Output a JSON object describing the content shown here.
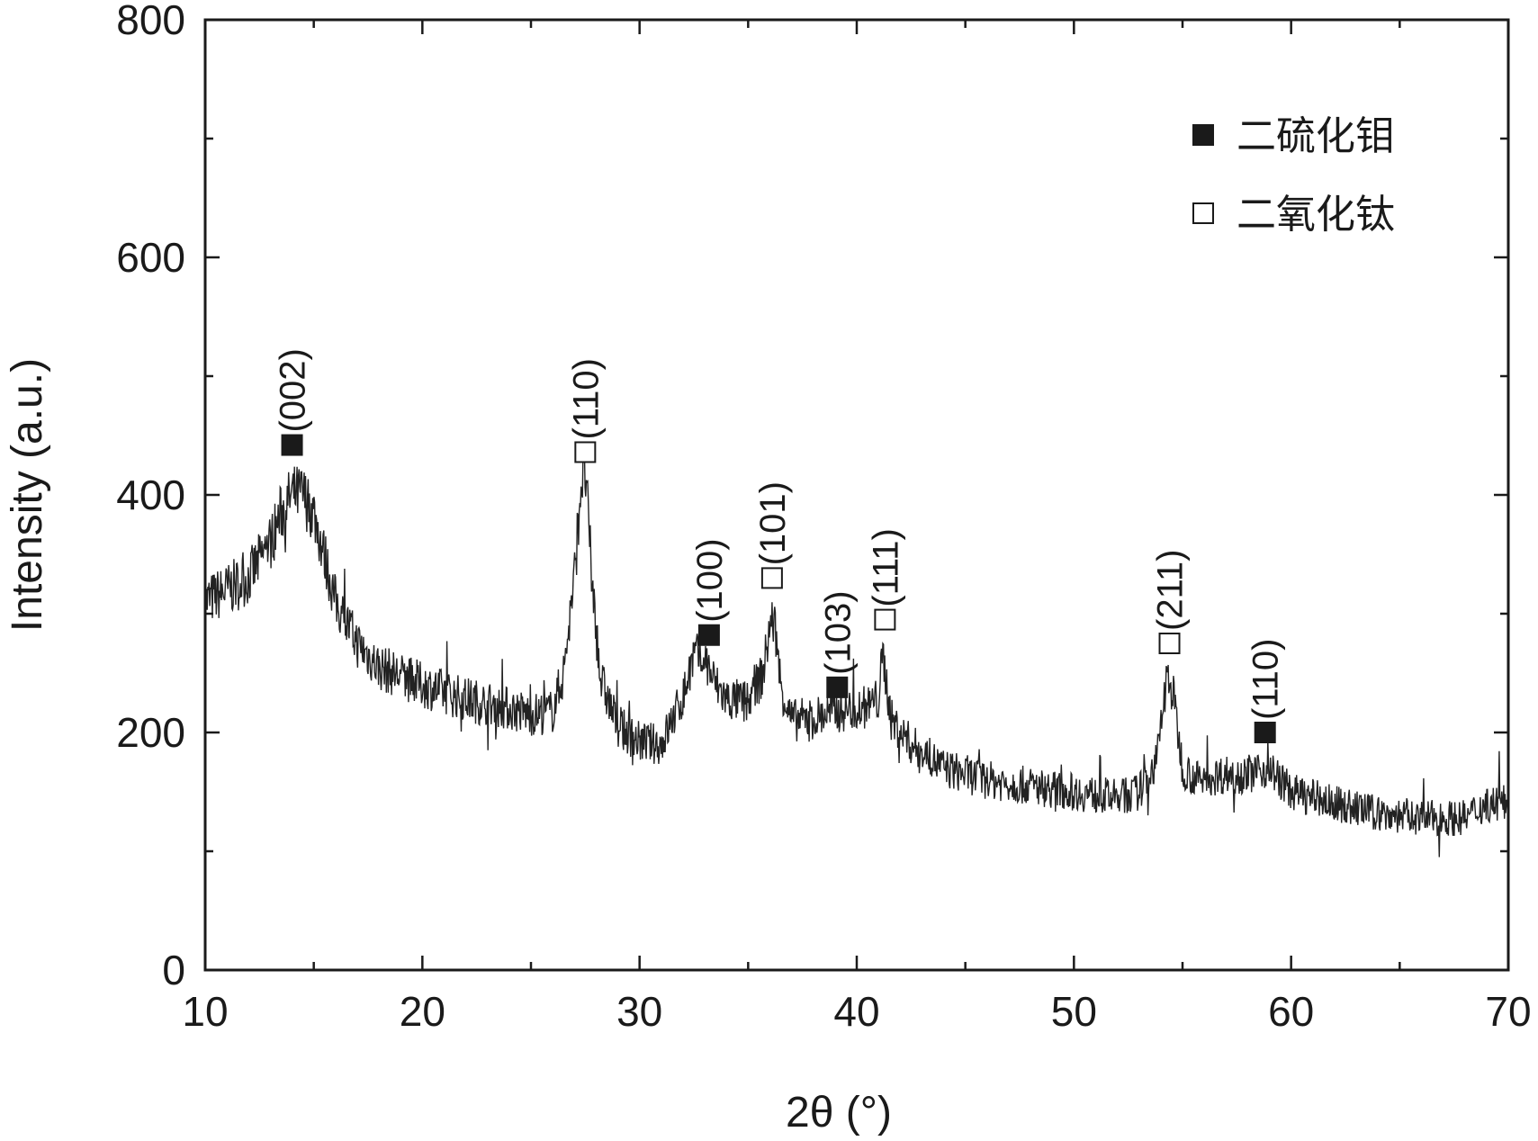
{
  "chart_data": {
    "type": "line",
    "xlabel": "2θ (°)",
    "ylabel": "Intensity (a.u.)",
    "xlim": [
      10,
      70
    ],
    "ylim": [
      0,
      800
    ],
    "x_ticks": [
      10,
      20,
      30,
      40,
      50,
      60,
      70
    ],
    "y_ticks": [
      0,
      200,
      400,
      600,
      800
    ],
    "grid": false,
    "legend_position": "top-right",
    "legend": [
      {
        "label": "二硫化钼",
        "marker": "filled-square"
      },
      {
        "label": "二氧化钛",
        "marker": "open-square"
      }
    ],
    "series": [
      {
        "color": "#222222",
        "x": [
          10,
          11,
          12,
          13,
          13.5,
          14,
          14.5,
          15,
          16,
          17,
          18,
          20,
          22,
          24,
          25,
          26,
          26.5,
          27,
          27.3,
          27.5,
          27.8,
          28.2,
          29,
          30,
          31,
          32,
          32.5,
          33,
          33.5,
          34,
          35,
          35.7,
          36,
          36.2,
          36.5,
          37,
          38,
          39,
          40,
          40.5,
          41,
          41.2,
          41.6,
          42.5,
          44,
          46,
          48,
          50,
          52,
          53,
          53.8,
          54.3,
          54.6,
          55,
          55.7,
          57,
          58,
          59,
          60,
          62,
          64,
          66,
          68,
          69,
          70
        ],
        "y": [
          310,
          320,
          330,
          360,
          385,
          400,
          400,
          385,
          310,
          275,
          255,
          240,
          228,
          220,
          215,
          218,
          250,
          330,
          410,
          420,
          330,
          245,
          205,
          192,
          190,
          230,
          265,
          262,
          240,
          228,
          225,
          250,
          290,
          295,
          240,
          210,
          212,
          218,
          220,
          222,
          228,
          265,
          210,
          190,
          170,
          160,
          155,
          150,
          145,
          150,
          175,
          250,
          228,
          170,
          160,
          165,
          165,
          170,
          150,
          140,
          132,
          128,
          128,
          140,
          140
        ]
      }
    ],
    "annotations": [
      {
        "label": "(002)",
        "x": 14,
        "marker": "filled-square",
        "y": 442
      },
      {
        "label": "(110)",
        "x": 27.5,
        "marker": "open-square",
        "y": 436
      },
      {
        "label": "(100)",
        "x": 33.2,
        "marker": "filled-square",
        "y": 282
      },
      {
        "label": "(101)",
        "x": 36.1,
        "marker": "open-square",
        "y": 330
      },
      {
        "label": "(103)",
        "x": 39.1,
        "marker": "filled-square",
        "y": 238
      },
      {
        "label": "(111)",
        "x": 41.3,
        "marker": "open-square",
        "y": 295
      },
      {
        "label": "(211)",
        "x": 54.4,
        "marker": "open-square",
        "y": 275
      },
      {
        "label": "(110)",
        "x": 58.8,
        "marker": "filled-square",
        "y": 200
      }
    ]
  }
}
